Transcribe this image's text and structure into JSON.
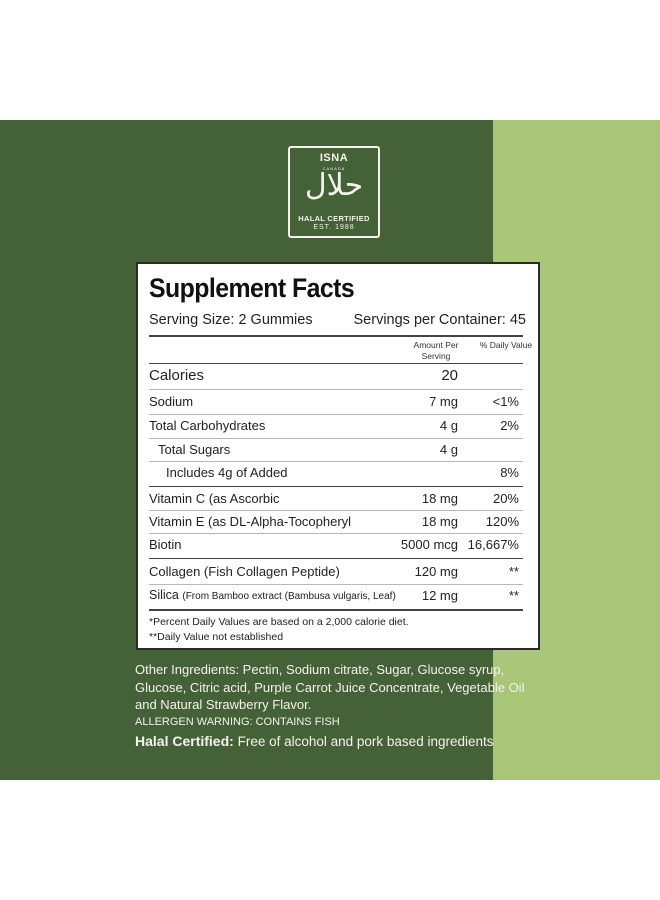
{
  "colors": {
    "band_dark": "#456137",
    "band_light": "#a8c578",
    "text_light": "#f3f3ea"
  },
  "logo": {
    "brand": "ISNA",
    "brand_sub": "CANADA",
    "arabic": "حلال",
    "certified": "HALAL CERTIFIED",
    "established": "EST. 1988"
  },
  "facts": {
    "title": "Supplement Facts",
    "serving_size": "Serving Size: 2 Gummies",
    "servings_per_container": "Servings per Container: 45",
    "header_amount": "Amount Per Serving",
    "header_dv": "% Daily Value",
    "rows": [
      {
        "name": "Calories",
        "amount": "20",
        "dv": ""
      },
      {
        "name": "Sodium",
        "amount": "7 mg",
        "dv": "<1%"
      },
      {
        "name": "Total Carbohydrates",
        "amount": "4 g",
        "dv": "2%"
      },
      {
        "name": "Total Sugars",
        "amount": "4 g",
        "dv": ""
      },
      {
        "name": "Includes 4g of Added",
        "amount": "",
        "dv": "8%"
      },
      {
        "name": "Vitamin C (as Ascorbic",
        "amount": "18 mg",
        "dv": "20%"
      },
      {
        "name": "Vitamin E (as DL-Alpha-Tocopheryl",
        "amount": "18 mg",
        "dv": "120%"
      },
      {
        "name": "Biotin",
        "amount": "5000 mcg",
        "dv": "16,667%"
      },
      {
        "name": "Collagen (Fish Collagen Peptide)",
        "amount": "120 mg",
        "dv": "**"
      },
      {
        "name": "Silica",
        "name_detail": "(From Bamboo extract (Bambusa vulgaris, Leaf)",
        "amount": "12 mg",
        "dv": "**"
      }
    ],
    "footnote1": "*Percent Daily Values are based on a 2,000 calorie diet.",
    "footnote2": "**Daily Value not established"
  },
  "other_ingredients": "Other Ingredients: Pectin, Sodium citrate, Sugar, Glucose syrup, Glucose, Citric acid, Purple Carrot Juice Concentrate, Vegetable Oil and Natural Strawberry Flavor.",
  "allergen_warning": "ALLERGEN WARNING: CONTAINS FISH",
  "halal": {
    "label": "Halal Certified:",
    "text": "Free of alcohol and pork based ingredients"
  }
}
